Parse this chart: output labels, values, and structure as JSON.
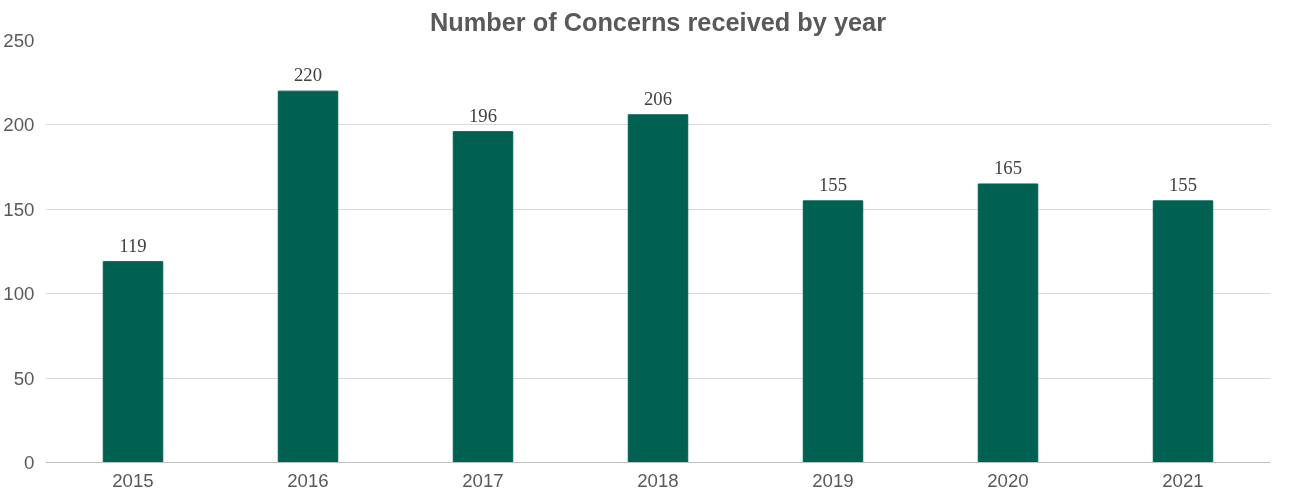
{
  "chart_data": {
    "type": "bar",
    "title": "Number of Concerns received by year",
    "categories": [
      "2015",
      "2016",
      "2017",
      "2018",
      "2019",
      "2020",
      "2021"
    ],
    "values": [
      119,
      220,
      196,
      206,
      155,
      165,
      155
    ],
    "color": "#006152",
    "ylim": [
      0,
      250
    ],
    "yticks": [
      0,
      50,
      100,
      150,
      200,
      250
    ],
    "grid": "y",
    "data_labels": true
  }
}
